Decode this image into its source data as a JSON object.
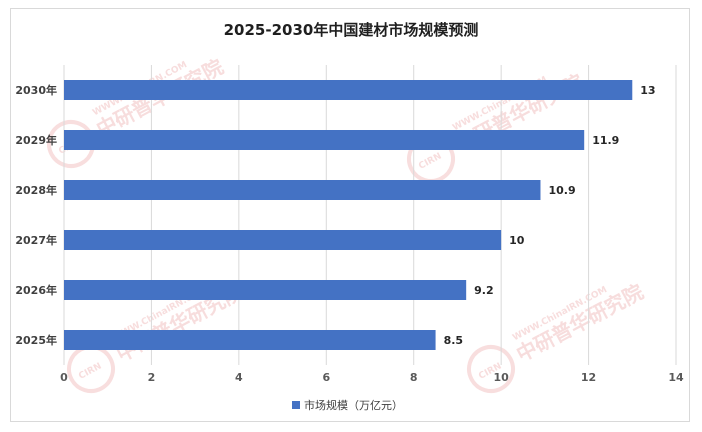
{
  "chart_data": {
    "type": "bar",
    "orientation": "horizontal",
    "title": "2025-2030年中国建材市场规模预测",
    "categories": [
      "2025年",
      "2026年",
      "2027年",
      "2028年",
      "2029年",
      "2030年"
    ],
    "series": [
      {
        "name": "市场规模（万亿元）",
        "values": [
          8.5,
          9.2,
          10,
          10.9,
          11.9,
          13
        ],
        "color": "#4472c4"
      }
    ],
    "data_labels": [
      "8.5",
      "9.2",
      "10",
      "10.9",
      "11.9",
      "13"
    ],
    "xlim": [
      0,
      14
    ],
    "xticks": [
      0,
      2,
      4,
      6,
      8,
      10,
      12,
      14
    ],
    "grid": true,
    "legend_position": "bottom"
  },
  "watermark": {
    "logo_text": "CIRN",
    "brand_text": "中研普华研究院",
    "url_text": "WWW.ChinaIRN.COM",
    "color": "#f2c2c2"
  }
}
